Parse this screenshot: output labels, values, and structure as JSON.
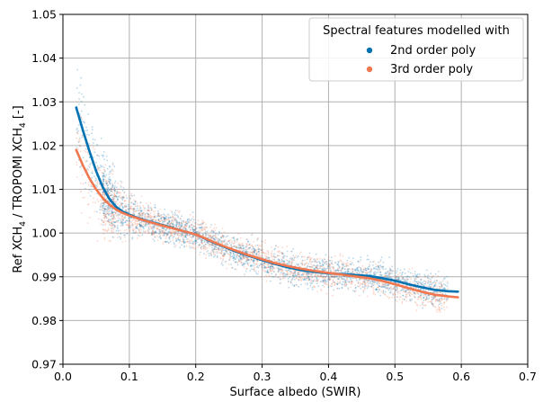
{
  "chart_data": {
    "type": "scatter",
    "xlabel": "Surface albedo (SWIR)",
    "ylabel_parts": [
      "Ref XCH",
      "4",
      " / TROPOMI XCH",
      "4",
      " [-]"
    ],
    "xlim": [
      0.0,
      0.7
    ],
    "ylim": [
      0.97,
      1.05
    ],
    "xticks": [
      0.0,
      0.1,
      0.2,
      0.3,
      0.4,
      0.5,
      0.6,
      0.7
    ],
    "yticks": [
      0.97,
      0.98,
      0.99,
      1.0,
      1.01,
      1.02,
      1.03,
      1.04,
      1.05
    ],
    "xtick_labels": [
      "0.0",
      "0.1",
      "0.2",
      "0.3",
      "0.4",
      "0.5",
      "0.6",
      "0.7"
    ],
    "ytick_labels": [
      "0.97",
      "0.98",
      "0.99",
      "1.00",
      "1.01",
      "1.02",
      "1.03",
      "1.04",
      "1.05"
    ],
    "grid": true,
    "legend": {
      "title": "Spectral features modelled with",
      "placement": "top-right"
    },
    "series": [
      {
        "name": "2nd order poly",
        "color": "#0072b2",
        "trend": {
          "x": [
            0.02,
            0.03,
            0.04,
            0.05,
            0.06,
            0.07,
            0.08,
            0.09,
            0.1,
            0.11,
            0.12,
            0.14,
            0.16,
            0.18,
            0.2,
            0.22,
            0.24,
            0.26,
            0.28,
            0.3,
            0.32,
            0.34,
            0.36,
            0.38,
            0.4,
            0.42,
            0.44,
            0.46,
            0.48,
            0.5,
            0.52,
            0.54,
            0.56,
            0.58,
            0.595
          ],
          "y": [
            1.0287,
            1.0235,
            1.0187,
            1.0142,
            1.0105,
            1.0078,
            1.006,
            1.0049,
            1.0042,
            1.0036,
            1.0031,
            1.0022,
            1.0014,
            1.0005,
            0.9997,
            0.9983,
            0.997,
            0.9958,
            0.9948,
            0.9938,
            0.9929,
            0.9921,
            0.9915,
            0.9911,
            0.9908,
            0.9906,
            0.9904,
            0.9902,
            0.9897,
            0.9891,
            0.9883,
            0.9876,
            0.987,
            0.9867,
            0.9866
          ]
        }
      },
      {
        "name": "3rd order poly",
        "color": "#f07850",
        "trend": {
          "x": [
            0.02,
            0.03,
            0.04,
            0.05,
            0.06,
            0.07,
            0.08,
            0.09,
            0.1,
            0.11,
            0.12,
            0.14,
            0.16,
            0.18,
            0.2,
            0.22,
            0.24,
            0.26,
            0.28,
            0.3,
            0.32,
            0.34,
            0.36,
            0.38,
            0.4,
            0.42,
            0.44,
            0.46,
            0.48,
            0.5,
            0.52,
            0.54,
            0.56,
            0.58,
            0.595
          ],
          "y": [
            1.019,
            1.0155,
            1.0125,
            1.01,
            1.008,
            1.0065,
            1.0054,
            1.0046,
            1.004,
            1.0035,
            1.003,
            1.0021,
            1.0013,
            1.0005,
            0.9997,
            0.9984,
            0.9971,
            0.996,
            0.9949,
            0.994,
            0.9931,
            0.9924,
            0.9918,
            0.9913,
            0.9909,
            0.9905,
            0.9901,
            0.9897,
            0.9891,
            0.9883,
            0.9874,
            0.9866,
            0.9859,
            0.9855,
            0.9853
          ]
        }
      }
    ]
  }
}
